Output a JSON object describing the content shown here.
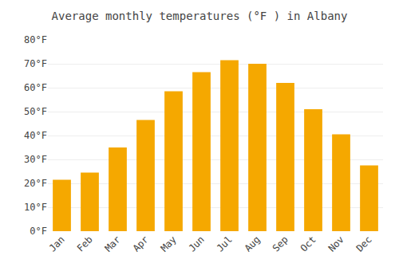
{
  "chart_data": {
    "type": "bar",
    "title": "Average monthly temperatures (°F ) in Albany",
    "categories": [
      "Jan",
      "Feb",
      "Mar",
      "Apr",
      "May",
      "Jun",
      "Jul",
      "Aug",
      "Sep",
      "Oct",
      "Nov",
      "Dec"
    ],
    "values": [
      21.5,
      24.5,
      35.0,
      46.5,
      58.5,
      66.5,
      71.5,
      70.0,
      62.0,
      51.0,
      40.5,
      27.5
    ],
    "color": "#F5A800",
    "ylim": [
      0,
      80
    ],
    "yticks": [
      {
        "value": 0,
        "label": "0°F"
      },
      {
        "value": 10,
        "label": "10°F"
      },
      {
        "value": 20,
        "label": "20°F"
      },
      {
        "value": 30,
        "label": "30°F"
      },
      {
        "value": 40,
        "label": "40°F"
      },
      {
        "value": 50,
        "label": "50°F"
      },
      {
        "value": 60,
        "label": "60°F"
      },
      {
        "value": 70,
        "label": "70°F"
      },
      {
        "value": 80,
        "label": "80°F"
      }
    ],
    "grid": true
  }
}
